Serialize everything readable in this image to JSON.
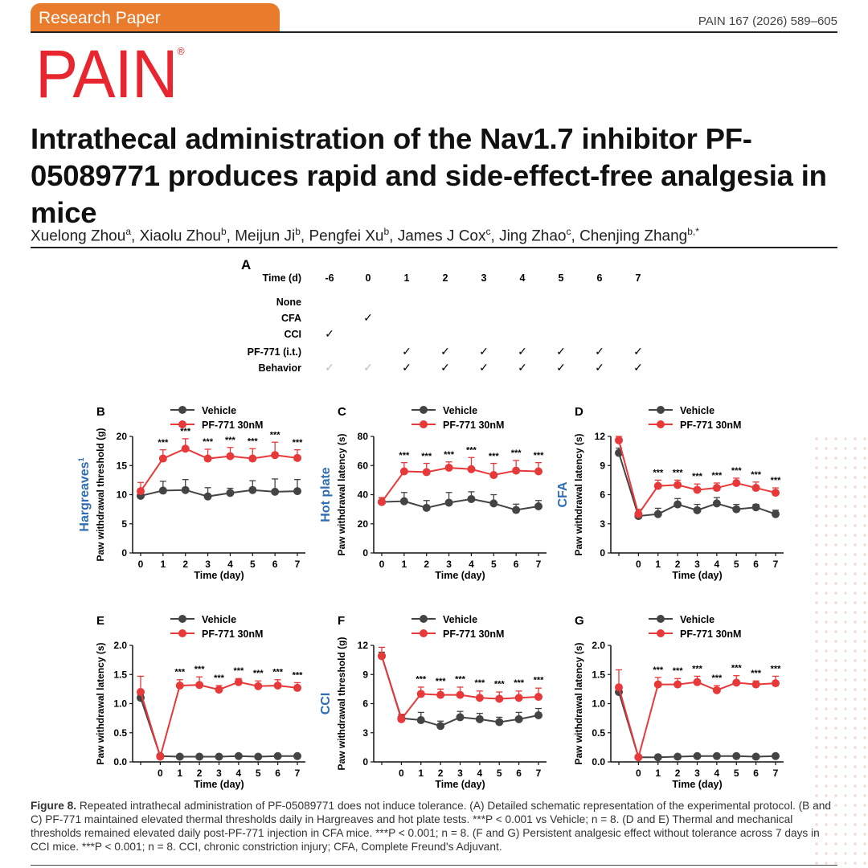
{
  "header": {
    "tab_label": "Research Paper",
    "journal_ref": "PAIN 167 (2026) 589–605",
    "logo_text": "PAIN",
    "logo_reg": "®",
    "colors": {
      "tab": "#e87c2c",
      "logo": "#e8262f",
      "vehicle": "#444444",
      "pf771": "#e8393a",
      "side_label": "#2f6db3"
    }
  },
  "title": "Intrathecal administration of the Nav1.7 inhibitor PF-05089771 produces rapid and side-effect-free analgesia in mice",
  "authors": [
    {
      "name": "Xuelong Zhou",
      "aff": "a"
    },
    {
      "name": "Xiaolu Zhou",
      "aff": "b"
    },
    {
      "name": "Meijun Ji",
      "aff": "b"
    },
    {
      "name": "Pengfei Xu",
      "aff": "b"
    },
    {
      "name": "James J Cox",
      "aff": "c"
    },
    {
      "name": "Jing Zhao",
      "aff": "c"
    },
    {
      "name": "Chenjing Zhang",
      "aff": "b,*"
    }
  ],
  "schematic": {
    "panel": "A",
    "time_label": "Time (d)",
    "days": [
      "-6",
      "0",
      "1",
      "2",
      "3",
      "4",
      "5",
      "6",
      "7"
    ],
    "check": "✓",
    "rows": [
      {
        "label": "None",
        "checks": []
      },
      {
        "label": "CFA",
        "checks": [
          1
        ]
      },
      {
        "label": "CCI",
        "checks": [
          0
        ]
      },
      {
        "label": "PF-771 (i.t.)",
        "checks": [
          2,
          3,
          4,
          5,
          6,
          7,
          8
        ]
      },
      {
        "label": "Behavior",
        "checks": [
          2,
          3,
          4,
          5,
          6,
          7,
          8
        ],
        "faint": [
          0,
          1
        ]
      }
    ]
  },
  "chart_data": [
    {
      "panel": "B",
      "type": "line",
      "side_label": "Hargreaves",
      "side_label_sup": "1",
      "xlabel": "Time (day)",
      "ylabel": "Paw withdrawal threshold (g)",
      "ylim": [
        0,
        20
      ],
      "yticks": [
        "0",
        "5",
        "10",
        "15",
        "20"
      ],
      "x": [
        0,
        1,
        2,
        3,
        4,
        5,
        6,
        7
      ],
      "xticks": [
        "0",
        "1",
        "2",
        "3",
        "4",
        "5",
        "6",
        "7"
      ],
      "series": [
        {
          "name": "Vehicle",
          "values": [
            9.8,
            10.7,
            10.8,
            9.7,
            10.3,
            10.8,
            10.5,
            10.6
          ],
          "err": [
            0.8,
            1.6,
            1.8,
            1.5,
            0.8,
            1.6,
            2.2,
            2.0
          ]
        },
        {
          "name": "PF-771 30nM",
          "values": [
            10.6,
            16.2,
            17.9,
            16.2,
            16.6,
            16.2,
            16.8,
            16.3
          ],
          "err": [
            1.5,
            1.5,
            1.7,
            1.6,
            1.5,
            1.7,
            2.2,
            1.4
          ]
        }
      ],
      "sig": [
        "",
        "***",
        "***",
        "***",
        "***",
        "***",
        "***",
        "***"
      ],
      "sig_offset": 1.5
    },
    {
      "panel": "C",
      "type": "line",
      "side_label": "Hot plate",
      "xlabel": "Time (day)",
      "ylabel": "Paw withdrawal latency (s)",
      "ylim": [
        0,
        80
      ],
      "yticks": [
        "0",
        "20",
        "40",
        "60",
        "80"
      ],
      "x": [
        0,
        1,
        2,
        3,
        4,
        5,
        6,
        7
      ],
      "xticks": [
        "0",
        "1",
        "2",
        "3",
        "4",
        "5",
        "6",
        "7"
      ],
      "series": [
        {
          "name": "Vehicle",
          "values": [
            35,
            35.5,
            31,
            34.5,
            37,
            34,
            29.5,
            32
          ],
          "err": [
            3,
            6,
            5,
            7,
            5,
            6,
            4,
            4
          ]
        },
        {
          "name": "PF-771 30nM",
          "values": [
            35,
            56,
            55.5,
            58.5,
            57.5,
            53.5,
            56.5,
            56
          ],
          "err": [
            3,
            6,
            6,
            4,
            8,
            8,
            7,
            6
          ]
        }
      ],
      "sig": [
        "",
        "***",
        "***",
        "***",
        "***",
        "***",
        "***",
        "***"
      ],
      "sig_offset": 6
    },
    {
      "panel": "D",
      "type": "line",
      "side_label": "CFA",
      "xlabel": "Time (day)",
      "ylabel": "Paw withdrawal latency (s)",
      "ylim": [
        0,
        12
      ],
      "yticks": [
        "0",
        "3",
        "6",
        "9",
        "12"
      ],
      "x": [
        -1,
        0,
        1,
        2,
        3,
        4,
        5,
        6,
        7
      ],
      "xticks": [
        "",
        "0",
        "1",
        "2",
        "3",
        "4",
        "5",
        "6",
        "7"
      ],
      "series": [
        {
          "name": "Vehicle",
          "values": [
            10.3,
            3.8,
            4.0,
            5.0,
            4.4,
            5.1,
            4.5,
            4.7,
            4.0
          ],
          "err": [
            0.5,
            0.4,
            0.6,
            0.6,
            0.6,
            0.6,
            0.5,
            0.3,
            0.4
          ]
        },
        {
          "name": "PF-771 30nM",
          "values": [
            11.6,
            4.0,
            6.9,
            7.0,
            6.5,
            6.7,
            7.2,
            6.7,
            6.2
          ],
          "err": [
            0.4,
            0.5,
            0.6,
            0.5,
            0.6,
            0.5,
            0.5,
            0.6,
            0.5
          ]
        }
      ],
      "sig": [
        "",
        "",
        "***",
        "***",
        "***",
        "***",
        "***",
        "***",
        "***"
      ],
      "sig_offset": 1.0
    },
    {
      "panel": "E",
      "type": "line",
      "xlabel": "Time (day)",
      "ylabel": "Paw withdrawal latency (s)",
      "ylim": [
        0,
        2.0
      ],
      "yticks": [
        "0.0",
        "0.5",
        "1.0",
        "1.5",
        "2.0"
      ],
      "x": [
        -1,
        0,
        1,
        2,
        3,
        4,
        5,
        6,
        7
      ],
      "xticks": [
        "",
        "0",
        "1",
        "2",
        "3",
        "4",
        "5",
        "6",
        "7"
      ],
      "series": [
        {
          "name": "Vehicle",
          "values": [
            1.1,
            0.1,
            0.09,
            0.09,
            0.09,
            0.1,
            0.09,
            0.1,
            0.1
          ],
          "err": [
            0.05,
            0.02,
            0.01,
            0.01,
            0.01,
            0.01,
            0.01,
            0.01,
            0.01
          ]
        },
        {
          "name": "PF-771 30nM",
          "values": [
            1.2,
            0.09,
            1.31,
            1.32,
            1.24,
            1.37,
            1.3,
            1.31,
            1.27
          ],
          "err": [
            0.27,
            0.03,
            0.1,
            0.14,
            0.07,
            0.06,
            0.09,
            0.1,
            0.09
          ]
        }
      ],
      "sig": [
        "",
        "",
        "***",
        "***",
        "***",
        "***",
        "***",
        "***",
        "***"
      ],
      "sig_offset": 0.17
    },
    {
      "panel": "F",
      "type": "line",
      "side_label": "CCI",
      "xlabel": "Time (day)",
      "ylabel": "Paw withdrawal threshold (g)",
      "ylim": [
        0,
        12
      ],
      "yticks": [
        "0",
        "3",
        "6",
        "9",
        "12"
      ],
      "x": [
        -1,
        0,
        1,
        2,
        3,
        4,
        5,
        6,
        7
      ],
      "xticks": [
        "",
        "0",
        "1",
        "2",
        "3",
        "4",
        "5",
        "6",
        "7"
      ],
      "series": [
        {
          "name": "Vehicle",
          "values": [
            10.9,
            4.5,
            4.3,
            3.7,
            4.6,
            4.4,
            4.1,
            4.4,
            4.8
          ],
          "err": [
            0.4,
            0.4,
            0.8,
            0.5,
            0.6,
            0.6,
            0.5,
            0.7,
            0.7
          ]
        },
        {
          "name": "PF-771 30nM",
          "values": [
            10.9,
            4.4,
            7.0,
            6.9,
            6.9,
            6.6,
            6.5,
            6.6,
            6.7
          ],
          "err": [
            0.9,
            0.5,
            0.7,
            0.6,
            0.8,
            0.7,
            0.7,
            0.7,
            0.9
          ]
        }
      ],
      "sig": [
        "",
        "",
        "***",
        "***",
        "***",
        "***",
        "***",
        "***",
        "***"
      ],
      "sig_offset": 1.2
    },
    {
      "panel": "G",
      "type": "line",
      "xlabel": "Time (day)",
      "ylabel": "Paw withdrawal latency (s)",
      "ylim": [
        0,
        2.0
      ],
      "yticks": [
        "0.0",
        "0.5",
        "1.0",
        "1.5",
        "2.0"
      ],
      "x": [
        -1,
        0,
        1,
        2,
        3,
        4,
        5,
        6,
        7
      ],
      "xticks": [
        "",
        "0",
        "1",
        "2",
        "3",
        "4",
        "5",
        "6",
        "7"
      ],
      "series": [
        {
          "name": "Vehicle",
          "values": [
            1.2,
            0.08,
            0.08,
            0.09,
            0.1,
            0.1,
            0.1,
            0.09,
            0.1
          ],
          "err": [
            0.05,
            0.02,
            0.01,
            0.01,
            0.01,
            0.01,
            0.01,
            0.01,
            0.01
          ]
        },
        {
          "name": "PF-771 30nM",
          "values": [
            1.28,
            0.08,
            1.33,
            1.33,
            1.37,
            1.23,
            1.36,
            1.33,
            1.35
          ],
          "err": [
            0.3,
            0.03,
            0.12,
            0.1,
            0.1,
            0.08,
            0.12,
            0.06,
            0.12
          ]
        }
      ],
      "sig": [
        "",
        "",
        "***",
        "***",
        "***",
        "***",
        "***",
        "***",
        "***"
      ],
      "sig_offset": 0.17
    }
  ],
  "caption": {
    "figno": "Figure 8.",
    "text": " Repeated intrathecal administration of PF-05089771 does not induce tolerance. (A) Detailed schematic representation of the experimental protocol. (B and C) PF-771 maintained elevated thermal thresholds daily in Hargreaves and hot plate tests. ***P < 0.001 vs Vehicle; n = 8. (D and E) Thermal and mechanical thresholds remained elevated daily post-PF-771 injection in CFA mice. ***P < 0.001; n = 8. (F and G) Persistent analgesic effect without tolerance across 7 days in CCI mice. ***P < 0.001; n = 8. CCI, chronic constriction injury; CFA, Complete Freund's Adjuvant."
  }
}
